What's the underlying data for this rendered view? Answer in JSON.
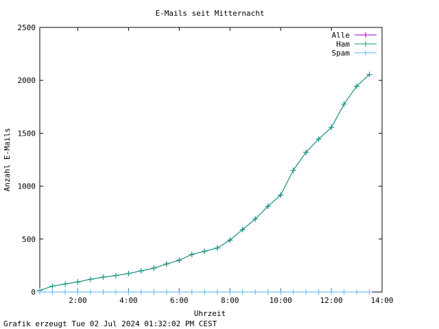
{
  "chart_data": {
    "type": "line",
    "title": "E-Mails seit Mitternacht",
    "xlabel": "Uhrzeit",
    "ylabel": "Anzahl E-Mails",
    "x_unit": "hours since midnight",
    "xlim": [
      0,
      13.5
    ],
    "ylim": [
      0,
      2500
    ],
    "x_ticks": [
      {
        "value": 1.5,
        "label": "2:00"
      },
      {
        "value": 3.5,
        "label": "4:00"
      },
      {
        "value": 5.5,
        "label": "6:00"
      },
      {
        "value": 7.5,
        "label": "8:00"
      },
      {
        "value": 9.5,
        "label": "10:00"
      },
      {
        "value": 11.5,
        "label": "12:00"
      },
      {
        "value": 13.5,
        "label": "14:00"
      }
    ],
    "y_ticks": [
      0,
      500,
      1000,
      1500,
      2000,
      2500
    ],
    "grid": false,
    "legend_position": "top-right",
    "x": [
      0,
      0.5,
      1,
      1.5,
      2,
      2.5,
      3,
      3.5,
      4,
      4.5,
      5,
      5.5,
      6,
      6.5,
      7,
      7.5,
      8,
      8.5,
      9,
      9.5,
      10,
      10.5,
      11,
      11.5,
      12,
      12.5,
      13
    ],
    "series": [
      {
        "name": "Alle",
        "color": "#9400d3",
        "marker": "+",
        "values": [
          15,
          55,
          75,
          95,
          120,
          140,
          155,
          175,
          200,
          225,
          265,
          300,
          355,
          385,
          415,
          490,
          590,
          690,
          810,
          915,
          1150,
          1320,
          1445,
          1555,
          1775,
          1945,
          2055
        ]
      },
      {
        "name": "Ham",
        "color": "#009e73",
        "marker": "+",
        "values": [
          15,
          55,
          75,
          95,
          120,
          140,
          155,
          175,
          200,
          225,
          265,
          300,
          355,
          385,
          415,
          490,
          590,
          690,
          810,
          915,
          1150,
          1320,
          1445,
          1555,
          1775,
          1945,
          2055
        ]
      },
      {
        "name": "Spam",
        "color": "#56b4e9",
        "marker": "+",
        "values": [
          0,
          0,
          0,
          0,
          0,
          0,
          0,
          0,
          0,
          0,
          0,
          0,
          0,
          0,
          0,
          0,
          0,
          0,
          0,
          0,
          0,
          0,
          0,
          0,
          0,
          0,
          0
        ]
      }
    ]
  },
  "footer": "Grafik erzeugt Tue 02 Jul 2024 01:32:02 PM CEST"
}
